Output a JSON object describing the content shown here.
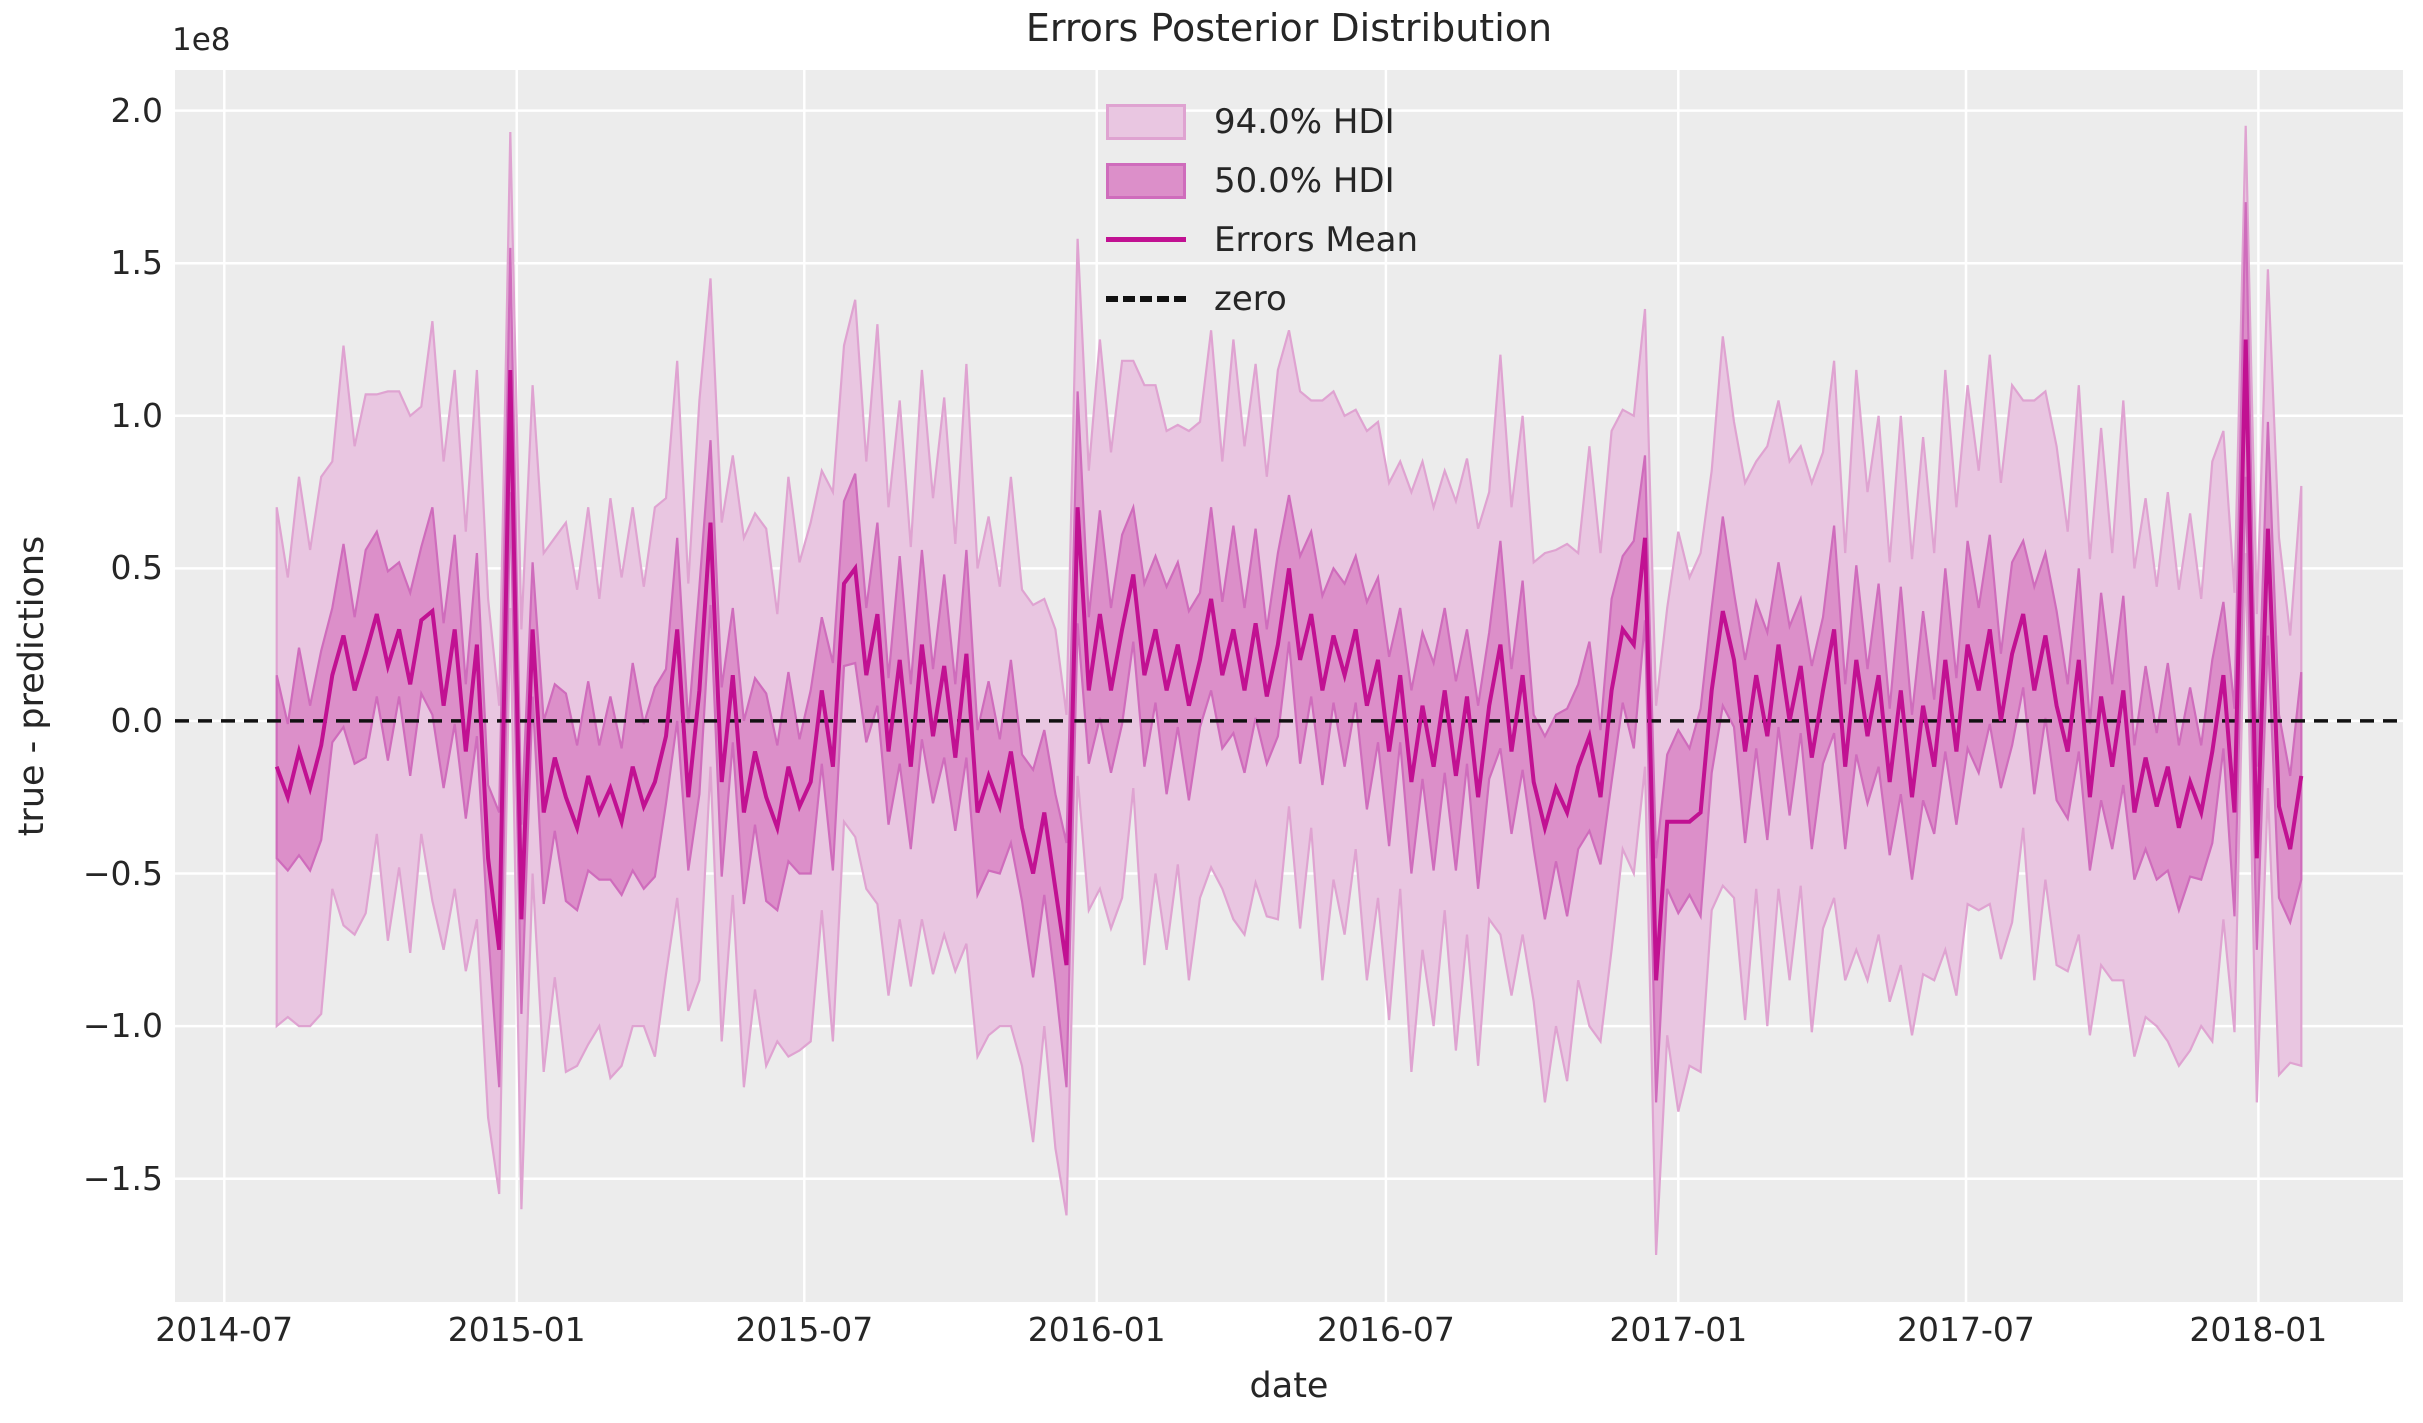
{
  "figure": {
    "title": "Errors Posterior Distribution",
    "background": "#ffffff",
    "axes_background": "#ececec",
    "grid_color": "#ffffff",
    "text_color": "#262626"
  },
  "axes": {
    "xlabel": "date",
    "ylabel": "true - predictions",
    "offset_text": "1e8",
    "xlim": [
      "2014-05-31",
      "2018-04-02"
    ],
    "ylim": [
      -1.904,
      2.133
    ],
    "x_ticks": [
      {
        "date": "2014-07-01",
        "label": "2014-07"
      },
      {
        "date": "2015-01-01",
        "label": "2015-01"
      },
      {
        "date": "2015-07-01",
        "label": "2015-07"
      },
      {
        "date": "2016-01-01",
        "label": "2016-01"
      },
      {
        "date": "2016-07-01",
        "label": "2016-07"
      },
      {
        "date": "2017-01-01",
        "label": "2017-01"
      },
      {
        "date": "2017-07-01",
        "label": "2017-07"
      },
      {
        "date": "2018-01-01",
        "label": "2018-01"
      }
    ],
    "y_ticks": [
      {
        "value": 2.0,
        "label": "2.0"
      },
      {
        "value": 1.5,
        "label": "1.5"
      },
      {
        "value": 1.0,
        "label": "1.0"
      },
      {
        "value": 0.5,
        "label": "0.5"
      },
      {
        "value": 0.0,
        "label": "0.0"
      },
      {
        "value": -0.5,
        "label": "−0.5"
      },
      {
        "value": -1.0,
        "label": "−1.0"
      },
      {
        "value": -1.5,
        "label": "−1.5"
      }
    ]
  },
  "legend": {
    "items": [
      {
        "label": "94.0% HDI",
        "type": "patch",
        "fill": "#e9c6e1",
        "edge": "#dfa3d1"
      },
      {
        "label": "50.0% HDI",
        "type": "patch",
        "fill": "#dc8fc9",
        "edge": "#cf6cbc"
      },
      {
        "label": "Errors Mean",
        "type": "line",
        "color": "#c11192"
      },
      {
        "label": "zero",
        "type": "dashed-line",
        "color": "#111111"
      }
    ]
  },
  "style": {
    "mean_color": "#c11192",
    "band94_fill": "#e9c6e1",
    "band94_edge": "#dfa3d1",
    "band50_fill": "#dc8fc9",
    "band50_edge": "#cf6cbc",
    "zero_color": "#111111",
    "grid_width": 2.5,
    "mean_width": 4,
    "band_edge_width": 2.2,
    "zero_width": 3.5,
    "zero_dash": "14 9"
  },
  "chart_data": {
    "type": "area",
    "title": "Errors Posterior Distribution",
    "xlabel": "date",
    "ylabel": "true - predictions",
    "y_scale_factor": "1e8",
    "xlim": [
      "2014-05-31",
      "2018-04-02"
    ],
    "ylim": [
      -1.904,
      2.133
    ],
    "x_tick_labels": [
      "2014-07",
      "2015-01",
      "2015-07",
      "2016-01",
      "2016-07",
      "2017-01",
      "2017-07",
      "2018-01"
    ],
    "y_tick_labels": [
      "2.0",
      "1.5",
      "1.0",
      "0.5",
      "0.0",
      "−0.5",
      "−1.0",
      "−1.5"
    ],
    "legend_entries": [
      "94.0% HDI",
      "50.0% HDI",
      "Errors Mean",
      "zero"
    ],
    "zero_reference": 0.0,
    "start_date": "2014-08-03",
    "freq_days": 7,
    "n_points": 183,
    "mean": [
      -0.15,
      -0.25,
      -0.1,
      -0.22,
      -0.08,
      0.15,
      0.28,
      0.1,
      0.22,
      0.35,
      0.18,
      0.3,
      0.12,
      0.33,
      0.36,
      0.05,
      0.3,
      -0.1,
      0.25,
      -0.45,
      -0.75,
      1.15,
      -0.65,
      0.3,
      -0.3,
      -0.12,
      -0.25,
      -0.35,
      -0.18,
      -0.3,
      -0.22,
      -0.33,
      -0.15,
      -0.28,
      -0.2,
      -0.05,
      0.3,
      -0.25,
      0.1,
      0.65,
      -0.2,
      0.15,
      -0.3,
      -0.1,
      -0.25,
      -0.35,
      -0.15,
      -0.28,
      -0.2,
      0.1,
      -0.15,
      0.45,
      0.5,
      0.15,
      0.35,
      -0.1,
      0.2,
      -0.15,
      0.25,
      -0.05,
      0.18,
      -0.12,
      0.22,
      -0.3,
      -0.18,
      -0.28,
      -0.1,
      -0.35,
      -0.5,
      -0.3,
      -0.55,
      -0.8,
      0.7,
      0.1,
      0.35,
      0.1,
      0.3,
      0.48,
      0.15,
      0.3,
      0.1,
      0.25,
      0.05,
      0.2,
      0.4,
      0.15,
      0.3,
      0.1,
      0.32,
      0.08,
      0.25,
      0.5,
      0.2,
      0.35,
      0.1,
      0.28,
      0.15,
      0.3,
      0.05,
      0.2,
      -0.1,
      0.15,
      -0.2,
      0.05,
      -0.15,
      0.1,
      -0.18,
      0.08,
      -0.25,
      0.05,
      0.25,
      -0.1,
      0.15,
      -0.2,
      -0.35,
      -0.22,
      -0.3,
      -0.15,
      -0.05,
      -0.25,
      0.1,
      0.3,
      0.25,
      0.6,
      -0.85,
      -0.33,
      -0.33,
      -0.33,
      -0.3,
      0.1,
      0.36,
      0.2,
      -0.1,
      0.15,
      -0.05,
      0.25,
      0.0,
      0.18,
      -0.12,
      0.1,
      0.3,
      -0.15,
      0.2,
      -0.05,
      0.15,
      -0.2,
      0.1,
      -0.25,
      0.05,
      -0.15,
      0.2,
      -0.1,
      0.25,
      0.1,
      0.3,
      0.0,
      0.22,
      0.35,
      0.1,
      0.28,
      0.05,
      -0.1,
      0.2,
      -0.25,
      0.08,
      -0.15,
      0.1,
      -0.3,
      -0.12,
      -0.28,
      -0.15,
      -0.35,
      -0.2,
      -0.3,
      -0.1,
      0.15,
      -0.3,
      1.25,
      -0.45,
      0.63,
      -0.28,
      -0.42,
      -0.18
    ],
    "hdi94_halfwidth_pattern": [
      0.85,
      0.72,
      0.9,
      0.78,
      0.88,
      0.7,
      0.95,
      0.8
    ],
    "hdi94_halfwidth_overrides": {
      "19": 0.85,
      "20": 0.8,
      "21": 0.78,
      "70": 0.85,
      "71": 0.82,
      "72": 0.88,
      "122": 0.75,
      "123": 0.75,
      "124": 0.9,
      "176": 0.72,
      "177": 0.7,
      "178": 0.8,
      "179": 0.85
    },
    "hdi50_halfwidth_pattern": [
      0.3,
      0.24,
      0.34,
      0.27,
      0.31,
      0.22
    ],
    "hdi50_halfwidth_overrides": {
      "20": 0.45,
      "21": 0.4,
      "71": 0.4,
      "72": 0.38,
      "124": 0.4,
      "177": 0.45,
      "178": 0.3,
      "179": 0.35
    }
  }
}
